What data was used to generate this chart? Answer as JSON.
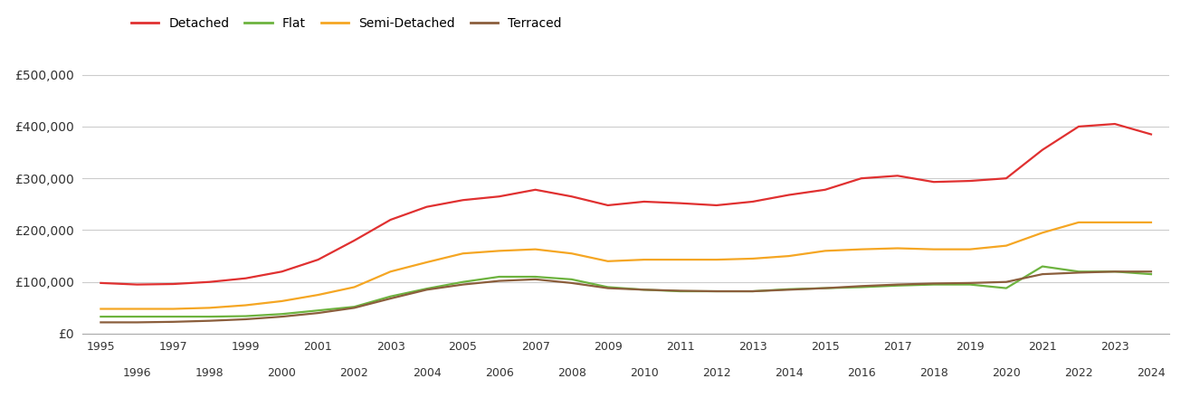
{
  "years": [
    1995,
    1996,
    1997,
    1998,
    1999,
    2000,
    2001,
    2002,
    2003,
    2004,
    2005,
    2006,
    2007,
    2008,
    2009,
    2010,
    2011,
    2012,
    2013,
    2014,
    2015,
    2016,
    2017,
    2018,
    2019,
    2020,
    2021,
    2022,
    2023,
    2024
  ],
  "detached": [
    98000,
    95000,
    96000,
    100000,
    107000,
    120000,
    143000,
    180000,
    220000,
    245000,
    258000,
    265000,
    278000,
    265000,
    248000,
    255000,
    252000,
    248000,
    255000,
    268000,
    278000,
    300000,
    305000,
    293000,
    295000,
    300000,
    355000,
    400000,
    405000,
    385000
  ],
  "flat": [
    33000,
    33000,
    33000,
    33000,
    34000,
    38000,
    45000,
    52000,
    72000,
    87000,
    100000,
    110000,
    110000,
    105000,
    90000,
    85000,
    82000,
    82000,
    82000,
    86000,
    88000,
    90000,
    93000,
    95000,
    95000,
    88000,
    130000,
    120000,
    120000,
    115000
  ],
  "semi_detached": [
    48000,
    48000,
    48000,
    50000,
    55000,
    63000,
    75000,
    90000,
    120000,
    138000,
    155000,
    160000,
    163000,
    155000,
    140000,
    143000,
    143000,
    143000,
    145000,
    150000,
    160000,
    163000,
    165000,
    163000,
    163000,
    170000,
    195000,
    215000,
    215000,
    215000
  ],
  "terraced": [
    22000,
    22000,
    23000,
    25000,
    28000,
    33000,
    40000,
    50000,
    68000,
    85000,
    95000,
    102000,
    105000,
    98000,
    88000,
    85000,
    83000,
    82000,
    82000,
    85000,
    88000,
    92000,
    95000,
    97000,
    98000,
    100000,
    115000,
    118000,
    120000,
    120000
  ],
  "colors": {
    "detached": "#e03030",
    "flat": "#6db33f",
    "semi_detached": "#f5a623",
    "terraced": "#8b5e3c"
  },
  "ylim": [
    0,
    550000
  ],
  "yticks": [
    0,
    100000,
    200000,
    300000,
    400000,
    500000
  ],
  "background_color": "#ffffff",
  "grid_color": "#cccccc",
  "legend_labels": [
    "Detached",
    "Flat",
    "Semi-Detached",
    "Terraced"
  ]
}
